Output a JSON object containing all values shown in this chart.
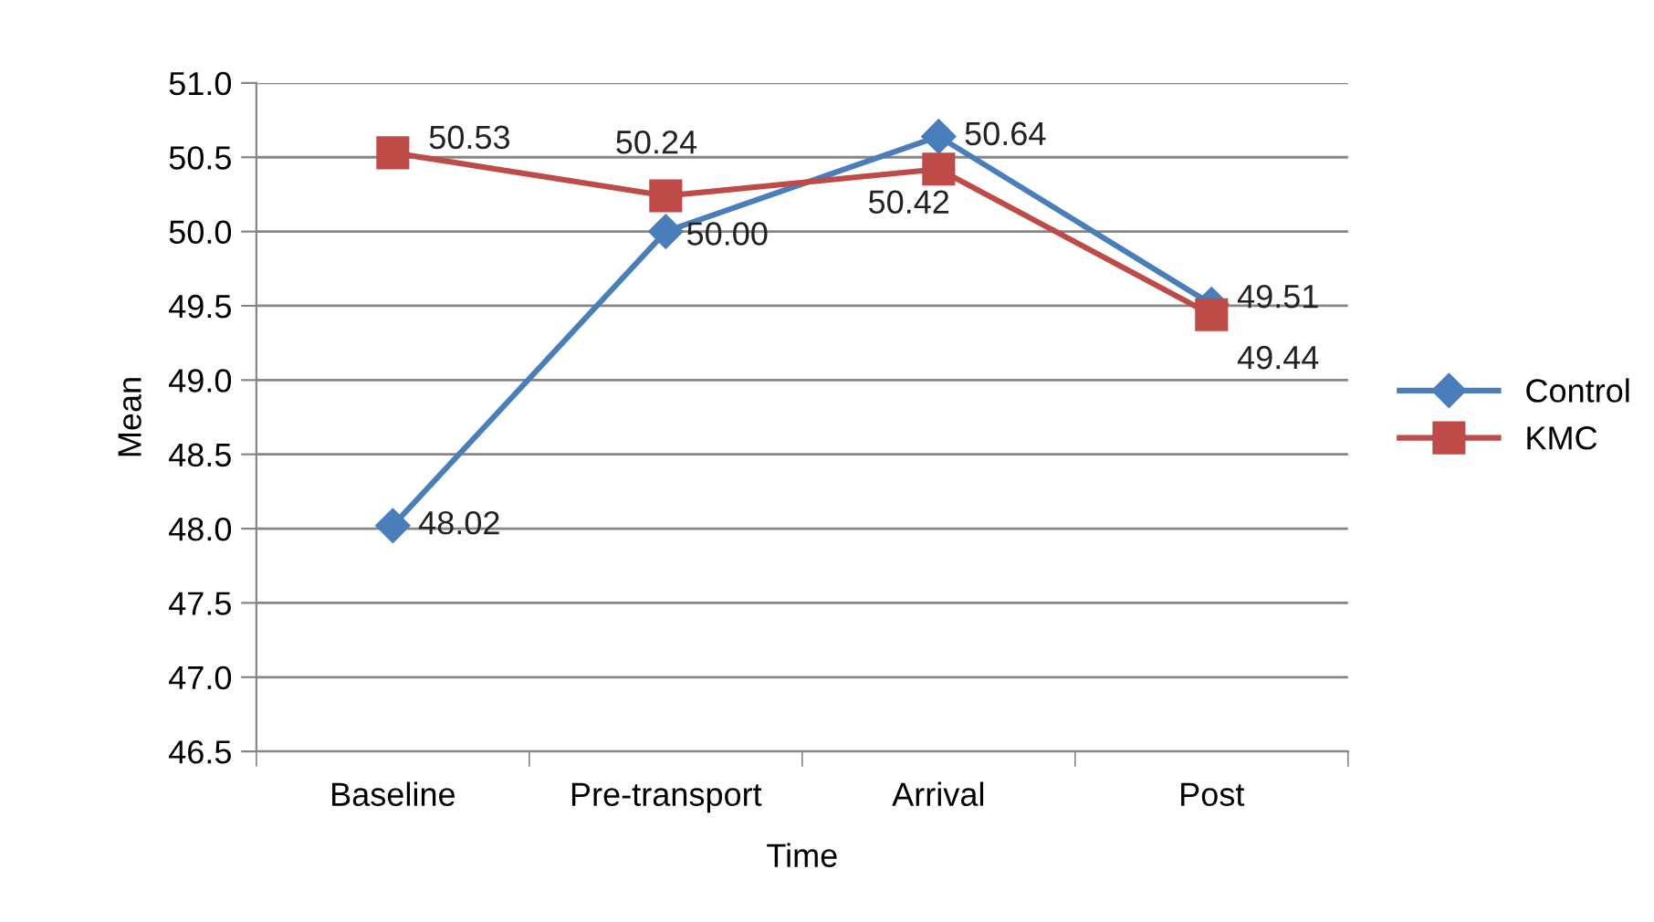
{
  "chart_data": {
    "type": "line",
    "xlabel": "Time",
    "ylabel": "Mean",
    "categories": [
      "Baseline",
      "Pre-transport",
      "Arrival",
      "Post"
    ],
    "series": [
      {
        "name": "Control",
        "color": "#4a7ebb",
        "marker": "diamond",
        "values": [
          48.02,
          50.0,
          50.64,
          49.51
        ],
        "value_labels": [
          "48.02",
          "50.00",
          "50.64",
          "49.51"
        ]
      },
      {
        "name": "KMC",
        "color": "#be4b48",
        "marker": "square",
        "values": [
          50.53,
          50.24,
          50.42,
          49.44
        ],
        "value_labels": [
          "50.53",
          "50.24",
          "50.42",
          "49.44"
        ]
      }
    ],
    "ylim": [
      46.5,
      51.0
    ],
    "yticks": [
      46.5,
      {
        "value": 47,
        "label": "47.0"
      },
      47.5,
      {
        "value": 48,
        "label": "48.0"
      },
      48.5,
      {
        "value": 49,
        "label": "49.0"
      },
      49.5,
      {
        "value": 50,
        "label": "50.0"
      },
      50.5,
      {
        "value": 51,
        "label": "51.0"
      }
    ],
    "grid": "y",
    "legend": "right"
  }
}
